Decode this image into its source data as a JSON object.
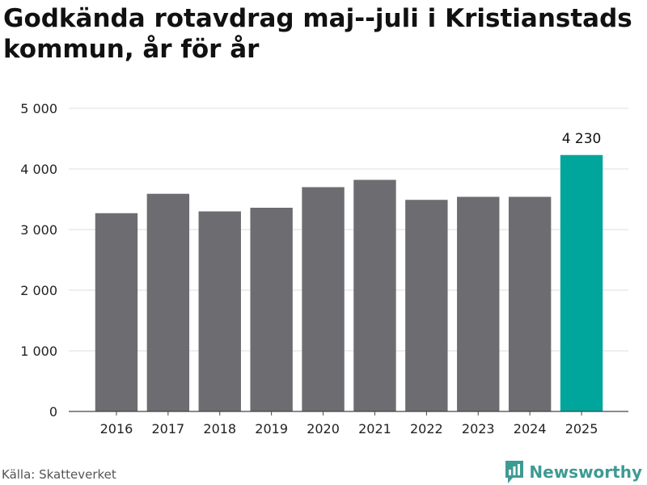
{
  "chart_data": {
    "type": "bar",
    "title": "Godkända rotavdrag maj--juli i Kristianstads kommun, år för år",
    "categories": [
      "2016",
      "2017",
      "2018",
      "2019",
      "2020",
      "2021",
      "2022",
      "2023",
      "2024",
      "2025"
    ],
    "values": [
      3270,
      3590,
      3300,
      3360,
      3700,
      3820,
      3490,
      3540,
      3540,
      4230
    ],
    "highlight_index": 9,
    "data_labels": [
      {
        "index": 9,
        "text": "4 230"
      }
    ],
    "ylim": [
      0,
      5000
    ],
    "yticks": [
      0,
      1000,
      2000,
      3000,
      4000,
      5000
    ],
    "ytick_labels": [
      "0",
      "1 000",
      "2 000",
      "3 000",
      "4 000",
      "5 000"
    ],
    "grid": true,
    "colors": {
      "bar": "#6d6c71",
      "highlight": "#00a69b",
      "grid": "#dddddd",
      "axis": "#444444"
    },
    "xlabel": "",
    "ylabel": ""
  },
  "footer": {
    "source": "Källa: Skatteverket",
    "brand": "Newsworthy",
    "brand_color": "#3d9b94",
    "brand_icon": "newsworthy-logo-icon"
  }
}
